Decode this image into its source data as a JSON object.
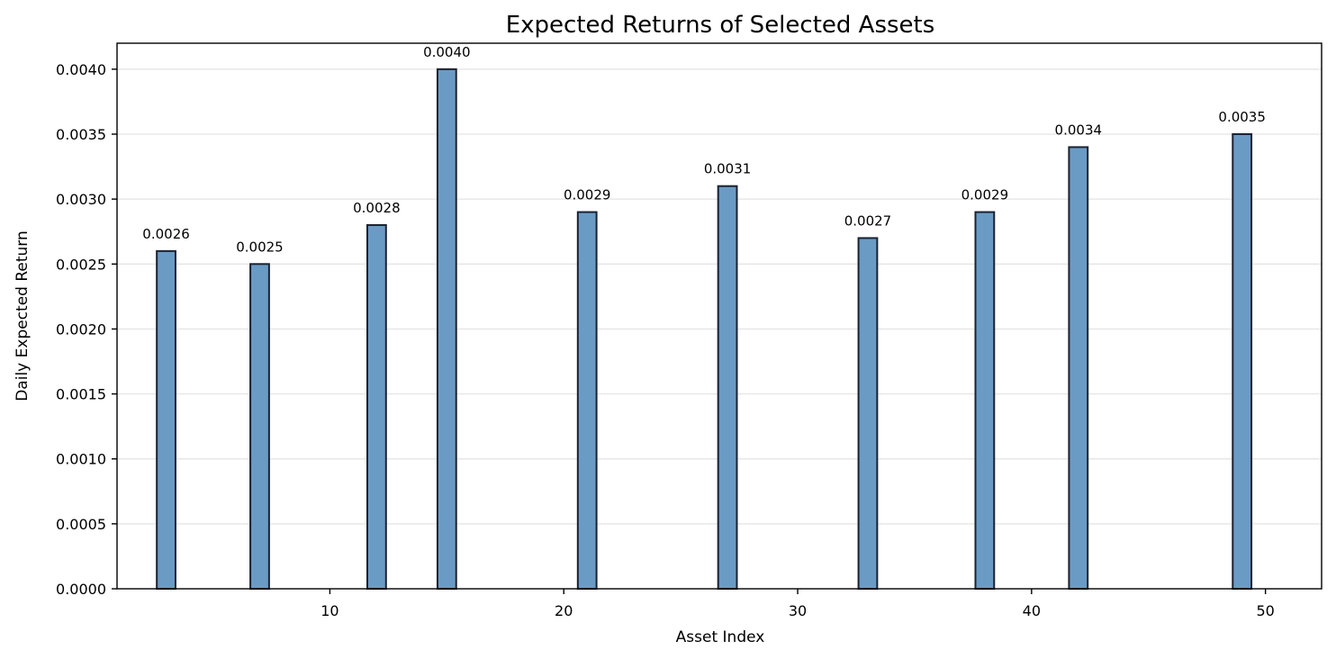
{
  "chart_data": {
    "type": "bar",
    "title": "Expected Returns of Selected Assets",
    "xlabel": "Asset Index",
    "ylabel": "Daily Expected Return",
    "x": [
      3,
      7,
      12,
      15,
      21,
      27,
      33,
      38,
      42,
      49
    ],
    "values": [
      0.0026,
      0.0025,
      0.0028,
      0.004,
      0.0029,
      0.0031,
      0.0027,
      0.0029,
      0.0034,
      0.0035
    ],
    "data_labels": [
      "0.0026",
      "0.0025",
      "0.0028",
      "0.0040",
      "0.0029",
      "0.0031",
      "0.0027",
      "0.0029",
      "0.0034",
      "0.0035"
    ],
    "bar_width": 0.8,
    "xlim": [
      0.9,
      52.4
    ],
    "ylim": [
      0,
      0.0042
    ],
    "xticks": [
      10,
      20,
      30,
      40,
      50
    ],
    "yticks": [
      0,
      0.0005,
      0.001,
      0.0015,
      0.002,
      0.0025,
      0.003,
      0.0035,
      0.004
    ],
    "xtick_labels": [
      "10",
      "20",
      "30",
      "40",
      "50"
    ],
    "ytick_labels": [
      "0.0000",
      "0.0005",
      "0.0010",
      "0.0015",
      "0.0020",
      "0.0025",
      "0.0030",
      "0.0035",
      "0.0040"
    ],
    "grid": "y",
    "legend": "none",
    "bar_color": "#6a9bc5",
    "edge_color": "#1b2230",
    "grid_color": "#e3e3e3"
  }
}
